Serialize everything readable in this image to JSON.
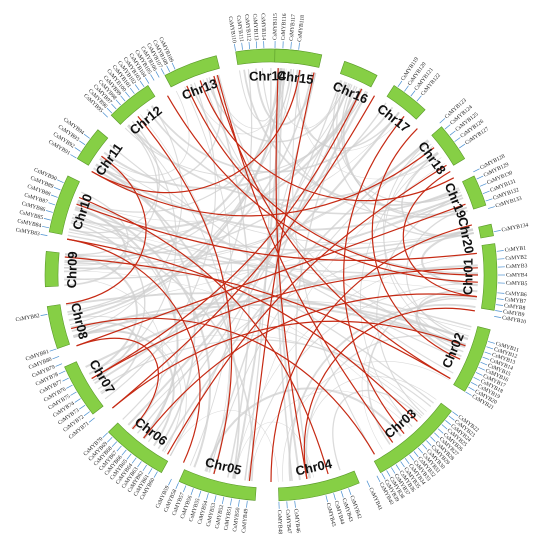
{
  "diagram": {
    "chromosomes": [
      {
        "name": "Chr01",
        "start": 82,
        "end": 99
      },
      {
        "name": "Chr02",
        "start": 104,
        "end": 121
      },
      {
        "name": "Chr03",
        "start": 127,
        "end": 151
      },
      {
        "name": "Chr04",
        "start": 157,
        "end": 178
      },
      {
        "name": "Chr05",
        "start": 184,
        "end": 204
      },
      {
        "name": "Chr06",
        "start": 209,
        "end": 226
      },
      {
        "name": "Chr07",
        "start": 232,
        "end": 246
      },
      {
        "name": "Chr08",
        "start": 251,
        "end": 262
      },
      {
        "name": "Chr09",
        "start": 267,
        "end": 276
      },
      {
        "name": "Chr10",
        "start": 281,
        "end": 296
      },
      {
        "name": "Chr11",
        "start": 301,
        "end": 310
      },
      {
        "name": "Chr12",
        "start": 315,
        "end": 327
      },
      {
        "name": "Chr13",
        "start": 332,
        "end": 346
      },
      {
        "name": "Chr14",
        "start": 351,
        "end": 367
      },
      {
        "name": "Chr15",
        "start": 1,
        "end": 13
      },
      {
        "name": "Chr16",
        "start": 19,
        "end": 28
      },
      {
        "name": "Chr17",
        "start": 33,
        "end": 43
      },
      {
        "name": "Chr18",
        "start": 49,
        "end": 59
      },
      {
        "name": "Chr19",
        "start": 64,
        "end": 72
      },
      {
        "name": "Chr20",
        "start": 77,
        "end": 80
      }
    ],
    "genes": [
      {
        "label": "CsMYB1",
        "angle": 84
      },
      {
        "label": "CsMYB2",
        "angle": 86
      },
      {
        "label": "CsMYB3",
        "angle": 88
      },
      {
        "label": "CsMYB4",
        "angle": 90
      },
      {
        "label": "CsMYB5",
        "angle": 92
      },
      {
        "label": "CsMYB6",
        "angle": 94.5
      },
      {
        "label": "CsMYB7",
        "angle": 96
      },
      {
        "label": "CsMYB8",
        "angle": 97.5
      },
      {
        "label": "CsMYB9",
        "angle": 99
      },
      {
        "label": "CsMYB10",
        "angle": 100.5
      },
      {
        "label": "CsMYB11",
        "angle": 107
      },
      {
        "label": "CsMYB12",
        "angle": 108.4
      },
      {
        "label": "CsMYB13",
        "angle": 109.8
      },
      {
        "label": "CsMYB14",
        "angle": 111.2
      },
      {
        "label": "CsMYB15",
        "angle": 112.6
      },
      {
        "label": "CsMYB16",
        "angle": 114
      },
      {
        "label": "CsMYB17",
        "angle": 115.4
      },
      {
        "label": "CsMYB18",
        "angle": 116.8
      },
      {
        "label": "CsMYB19",
        "angle": 118.2
      },
      {
        "label": "CsMYB20",
        "angle": 119.6
      },
      {
        "label": "CsMYB21",
        "angle": 121
      },
      {
        "label": "CsMYB22",
        "angle": 127
      },
      {
        "label": "CsMYB23",
        "angle": 128.4
      },
      {
        "label": "CsMYB24",
        "angle": 129.8
      },
      {
        "label": "CsMYB25",
        "angle": 131.2
      },
      {
        "label": "CsMYB26",
        "angle": 132.6
      },
      {
        "label": "CsMYB27",
        "angle": 134
      },
      {
        "label": "CsMYB28",
        "angle": 135.4
      },
      {
        "label": "CsMYB29",
        "angle": 136.8
      },
      {
        "label": "CsMYB30",
        "angle": 138.2
      },
      {
        "label": "CsMYB31",
        "angle": 139.6
      },
      {
        "label": "CsMYB32",
        "angle": 141
      },
      {
        "label": "CsMYB33",
        "angle": 142.4
      },
      {
        "label": "CsMYB34",
        "angle": 143.8
      },
      {
        "label": "CsMYB35",
        "angle": 145.2
      },
      {
        "label": "CsMYB36",
        "angle": 146.6
      },
      {
        "label": "CsMYB37",
        "angle": 148
      },
      {
        "label": "CsMYB38",
        "angle": 149.4
      },
      {
        "label": "CsMYB39",
        "angle": 150.8
      },
      {
        "label": "CsMYB40",
        "angle": 152.2
      },
      {
        "label": "CsMYB41",
        "angle": 155
      },
      {
        "label": "CsMYB42",
        "angle": 160
      },
      {
        "label": "CsMYB43",
        "angle": 162
      },
      {
        "label": "CsMYB44",
        "angle": 164
      },
      {
        "label": "CsMYB45",
        "angle": 166
      },
      {
        "label": "CsMYB46",
        "angle": 174
      },
      {
        "label": "CsMYB47",
        "angle": 176
      },
      {
        "label": "CsMYB48",
        "angle": 178
      },
      {
        "label": "CsMYB49",
        "angle": 186
      },
      {
        "label": "CsMYB50",
        "angle": 188
      },
      {
        "label": "CsMYB51",
        "angle": 190
      },
      {
        "label": "CsMYB52",
        "angle": 192
      },
      {
        "label": "CsMYB53",
        "angle": 194
      },
      {
        "label": "CsMYB54",
        "angle": 196
      },
      {
        "label": "CsMYB55",
        "angle": 198
      },
      {
        "label": "CsMYB56",
        "angle": 200
      },
      {
        "label": "CsMYB57",
        "angle": 202
      },
      {
        "label": "CsMYB58",
        "angle": 204
      },
      {
        "label": "CsMYB59",
        "angle": 206
      },
      {
        "label": "CsMYB60",
        "angle": 210
      },
      {
        "label": "CsMYB61",
        "angle": 211.6
      },
      {
        "label": "CsMYB62",
        "angle": 213.2
      },
      {
        "label": "CsMYB63",
        "angle": 214.8
      },
      {
        "label": "CsMYB64",
        "angle": 216.4
      },
      {
        "label": "CsMYB65",
        "angle": 218
      },
      {
        "label": "CsMYB66",
        "angle": 219.6
      },
      {
        "label": "CsMYB67",
        "angle": 221.2
      },
      {
        "label": "CsMYB68",
        "angle": 222.8
      },
      {
        "label": "CsMYB69",
        "angle": 224.4
      },
      {
        "label": "CsMYB70",
        "angle": 226
      },
      {
        "label": "CsMYB71",
        "angle": 231
      },
      {
        "label": "CsMYB72",
        "angle": 233
      },
      {
        "label": "CsMYB73",
        "angle": 235
      },
      {
        "label": "CsMYB74",
        "angle": 237
      },
      {
        "label": "CsMYB75",
        "angle": 239
      },
      {
        "label": "CsMYB76",
        "angle": 241
      },
      {
        "label": "CsMYB77",
        "angle": 243
      },
      {
        "label": "CsMYB78",
        "angle": 245
      },
      {
        "label": "CsMYB79",
        "angle": 247
      },
      {
        "label": "CsMYB80",
        "angle": 249
      },
      {
        "label": "CsMYB81",
        "angle": 251
      },
      {
        "label": "CsMYB82",
        "angle": 260
      },
      {
        "label": "CsMYB83",
        "angle": 280
      },
      {
        "label": "CsMYB84",
        "angle": 282
      },
      {
        "label": "CsMYB85",
        "angle": 284
      },
      {
        "label": "CsMYB86",
        "angle": 286
      },
      {
        "label": "CsMYB87",
        "angle": 288
      },
      {
        "label": "CsMYB88",
        "angle": 290
      },
      {
        "label": "CsMYB89",
        "angle": 292
      },
      {
        "label": "CsMYB90",
        "angle": 294
      },
      {
        "label": "CsMYB91",
        "angle": 301
      },
      {
        "label": "CsMYB92",
        "angle": 303
      },
      {
        "label": "CsMYB93",
        "angle": 305
      },
      {
        "label": "CsMYB94",
        "angle": 307
      },
      {
        "label": "CsMYB95",
        "angle": 314
      },
      {
        "label": "CsMYB96",
        "angle": 315.5
      },
      {
        "label": "CsMYB97",
        "angle": 317
      },
      {
        "label": "CsMYB98",
        "angle": 318.5
      },
      {
        "label": "CsMYB99",
        "angle": 320
      },
      {
        "label": "CsMYB100",
        "angle": 321.5
      },
      {
        "label": "CsMYB101",
        "angle": 323
      },
      {
        "label": "CsMYB102",
        "angle": 324.5
      },
      {
        "label": "CsMYB103",
        "angle": 326
      },
      {
        "label": "CsMYB104",
        "angle": 327.5
      },
      {
        "label": "CsMYB105",
        "angle": 329
      },
      {
        "label": "CsMYB106",
        "angle": 330.5
      },
      {
        "label": "CsMYB107",
        "angle": 332
      },
      {
        "label": "CsMYB108",
        "angle": 333.5
      },
      {
        "label": "CsMYB109",
        "angle": 335
      },
      {
        "label": "CsMYB110",
        "angle": 351
      },
      {
        "label": "CsMYB111",
        "angle": 352.8
      },
      {
        "label": "CsMYB112",
        "angle": 354.6
      },
      {
        "label": "CsMYB113",
        "angle": 356.4
      },
      {
        "label": "CsMYB114",
        "angle": 358.2
      },
      {
        "label": "CsMYB115",
        "angle": 1
      },
      {
        "label": "CsMYB116",
        "angle": 3
      },
      {
        "label": "CsMYB117",
        "angle": 5
      },
      {
        "label": "CsMYB118",
        "angle": 7
      },
      {
        "label": "CsMYB119",
        "angle": 34
      },
      {
        "label": "CsMYB120",
        "angle": 36
      },
      {
        "label": "CsMYB121",
        "angle": 38
      },
      {
        "label": "CsMYB122",
        "angle": 40
      },
      {
        "label": "CsMYB123",
        "angle": 48
      },
      {
        "label": "CsMYB124",
        "angle": 50
      },
      {
        "label": "CsMYB125",
        "angle": 52
      },
      {
        "label": "CsMYB126",
        "angle": 54
      },
      {
        "label": "CsMYB127",
        "angle": 56
      },
      {
        "label": "CsMYB128",
        "angle": 63
      },
      {
        "label": "CsMYB129",
        "angle": 65
      },
      {
        "label": "CsMYB130",
        "angle": 67
      },
      {
        "label": "CsMYB131",
        "angle": 69
      },
      {
        "label": "CsMYB132",
        "angle": 71
      },
      {
        "label": "CsMYB133",
        "angle": 73
      },
      {
        "label": "CsMYB134",
        "angle": 79
      }
    ],
    "duplications": [
      {
        "a": 340,
        "b": 62
      },
      {
        "a": 336,
        "b": 90
      },
      {
        "a": 344,
        "b": 120
      },
      {
        "a": 2,
        "b": 170
      },
      {
        "a": 12,
        "b": 186
      },
      {
        "a": 26,
        "b": 240
      },
      {
        "a": 8,
        "b": 300
      },
      {
        "a": 40,
        "b": 140
      },
      {
        "a": 52,
        "b": 300
      },
      {
        "a": 70,
        "b": 250
      },
      {
        "a": 88,
        "b": 240
      },
      {
        "a": 96,
        "b": 218
      },
      {
        "a": 110,
        "b": 230
      },
      {
        "a": 84,
        "b": 290
      },
      {
        "a": 135,
        "b": 280
      },
      {
        "a": 150,
        "b": 255
      },
      {
        "a": 164,
        "b": 292
      },
      {
        "a": 205,
        "b": 280
      },
      {
        "a": 92,
        "b": 330
      },
      {
        "a": 144,
        "b": 345
      },
      {
        "a": 114,
        "b": 45
      },
      {
        "a": 196,
        "b": 320
      },
      {
        "a": 30,
        "b": 230
      },
      {
        "a": 58,
        "b": 210
      },
      {
        "a": 76,
        "b": 180
      },
      {
        "a": 120,
        "b": 275
      },
      {
        "a": 100,
        "b": 170
      },
      {
        "a": 60,
        "b": 96
      },
      {
        "a": 262,
        "b": 305
      },
      {
        "a": 222,
        "b": 250
      }
    ],
    "background_links": 130
  }
}
